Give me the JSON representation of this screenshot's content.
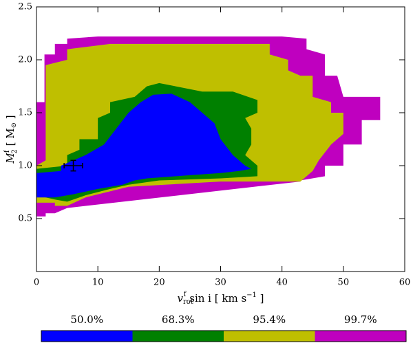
{
  "chart_data": {
    "type": "contour",
    "xlabel": {
      "main": "v",
      "sub": "rot",
      "sup": "f",
      "rest": " sin i [ km s",
      "unit_sup": "−1",
      "end": " ]"
    },
    "ylabel": {
      "main": "M",
      "sup": "f",
      "sub": "2",
      "rest": " [ M",
      "unit_sub": "⊙",
      "end": " ]"
    },
    "xlim": [
      0,
      60
    ],
    "ylim": [
      0,
      2.5
    ],
    "xticks": [
      0,
      10,
      20,
      30,
      40,
      50,
      60
    ],
    "yticks": [
      0.5,
      {
        "value": 1,
        "label": "1.0"
      },
      1.5,
      {
        "value": 2,
        "label": "2.0"
      },
      2.5
    ],
    "series": [
      {
        "name": "99.7%",
        "color": "#bf00bf",
        "x": [
          0,
          0,
          1.3,
          1.3,
          3,
          3,
          5,
          5,
          10,
          40,
          44,
          44,
          47,
          47,
          49,
          50,
          56,
          56,
          53,
          53,
          50,
          50,
          47,
          47,
          43,
          43,
          5,
          3,
          1.5,
          1.5,
          0
        ],
        "y": [
          0.55,
          1.6,
          1.6,
          2.05,
          2.05,
          2.15,
          2.15,
          2.2,
          2.22,
          2.22,
          2.2,
          2.1,
          2.05,
          1.85,
          1.85,
          1.65,
          1.65,
          1.43,
          1.43,
          1.2,
          1.2,
          1.0,
          1.0,
          0.9,
          0.86,
          0.85,
          0.6,
          0.55,
          0.55,
          0.52,
          0.52
        ]
      },
      {
        "name": "95.4%",
        "color": "#bfbf00",
        "x": [
          0,
          0,
          1.5,
          1.5,
          5,
          5,
          12,
          38,
          38,
          41,
          41,
          43,
          45,
          45,
          48,
          48,
          50,
          50,
          48,
          46,
          45,
          43,
          30,
          15,
          8,
          5,
          3,
          3,
          0
        ],
        "y": [
          0.7,
          1.0,
          1.05,
          1.95,
          2.0,
          2.1,
          2.15,
          2.15,
          2.05,
          2.0,
          1.9,
          1.85,
          1.85,
          1.65,
          1.6,
          1.5,
          1.5,
          1.3,
          1.2,
          1.05,
          0.95,
          0.85,
          0.85,
          0.8,
          0.7,
          0.62,
          0.62,
          0.65,
          0.65
        ]
      },
      {
        "name": "68.3%",
        "color": "#008000",
        "x": [
          0,
          0,
          5,
          5,
          7,
          7,
          10,
          10,
          12,
          12,
          16,
          18,
          20,
          27,
          32,
          36,
          36,
          34,
          35,
          35,
          34,
          36,
          36,
          30,
          20,
          15,
          12,
          8,
          5,
          3,
          0
        ],
        "y": [
          0.8,
          0.97,
          1.0,
          1.1,
          1.15,
          1.25,
          1.25,
          1.45,
          1.5,
          1.6,
          1.65,
          1.75,
          1.78,
          1.7,
          1.7,
          1.62,
          1.5,
          1.45,
          1.35,
          1.2,
          1.1,
          1.0,
          0.9,
          0.88,
          0.86,
          0.82,
          0.78,
          0.72,
          0.66,
          0.68,
          0.72
        ]
      },
      {
        "name": "50.0%",
        "color": "#0000ff",
        "x": [
          0,
          0,
          4,
          4,
          6,
          8,
          11,
          13,
          15,
          17,
          19,
          22,
          25,
          27,
          29,
          30,
          32,
          34,
          35,
          33,
          30,
          25,
          18,
          16,
          14,
          10,
          6,
          3,
          0
        ],
        "y": [
          0.72,
          0.93,
          0.95,
          1.0,
          1.05,
          1.1,
          1.2,
          1.35,
          1.5,
          1.6,
          1.67,
          1.68,
          1.6,
          1.5,
          1.4,
          1.25,
          1.1,
          1.0,
          0.97,
          0.95,
          0.93,
          0.91,
          0.88,
          0.86,
          0.82,
          0.78,
          0.73,
          0.7,
          0.7
        ]
      }
    ],
    "point": {
      "x": 6,
      "y": 1.0,
      "xerr": 1.5,
      "yerr": 0.05
    }
  }
}
